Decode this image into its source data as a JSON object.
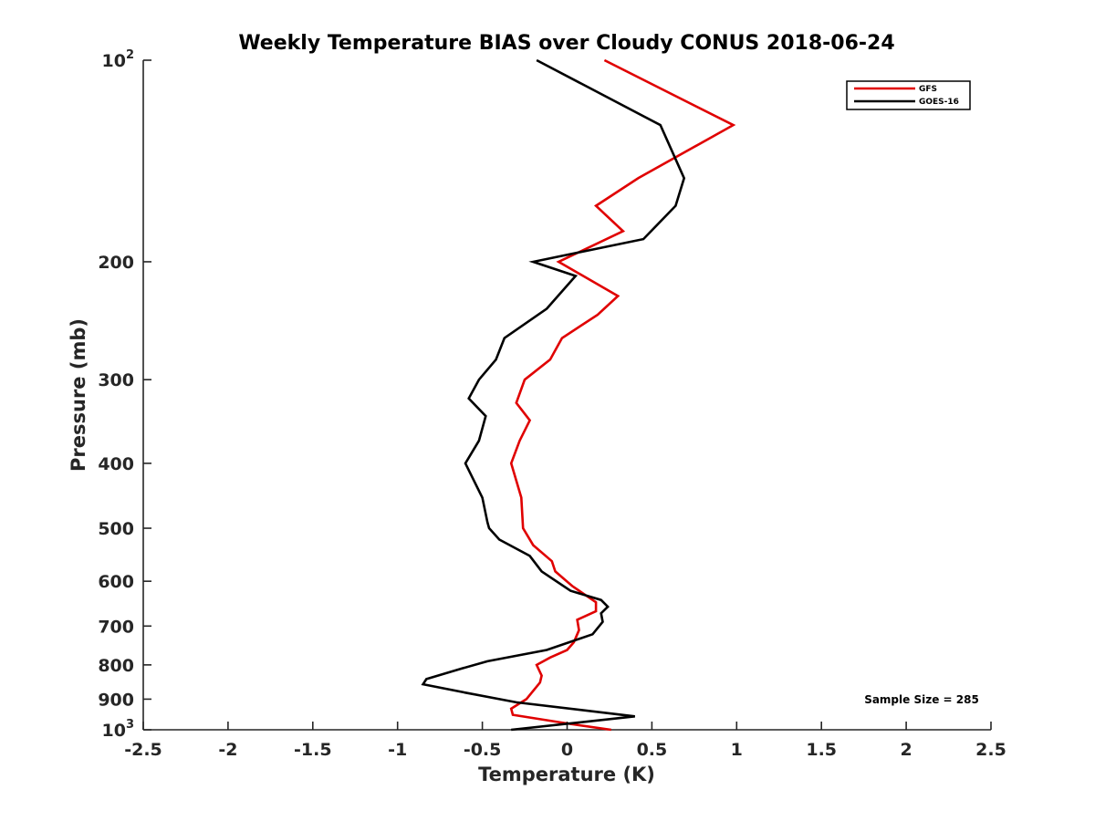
{
  "chart_data": {
    "type": "line",
    "title": "Weekly Temperature BIAS over Cloudy CONUS 2018-06-24",
    "xlabel": "Temperature (K)",
    "ylabel": "Pressure (mb)",
    "xlim": [
      -2.5,
      2.5
    ],
    "ylim": [
      1000,
      100
    ],
    "yscale": "log",
    "y_reversed": true,
    "grid": false,
    "legend_position": "top-right",
    "x_ticks": [
      "-2.5",
      "-2",
      "-1.5",
      "-1",
      "-0.5",
      "0",
      "0.5",
      "1",
      "1.5",
      "2",
      "2.5"
    ],
    "x_tick_values": [
      -2.5,
      -2,
      -1.5,
      -1,
      -0.5,
      0,
      0.5,
      1,
      1.5,
      2,
      2.5
    ],
    "y_ticks": [
      {
        "value": 100,
        "base": "10",
        "exp": "2"
      },
      {
        "value": 200,
        "label": "200"
      },
      {
        "value": 300,
        "label": "300"
      },
      {
        "value": 400,
        "label": "400"
      },
      {
        "value": 500,
        "label": "500"
      },
      {
        "value": 600,
        "label": "600"
      },
      {
        "value": 700,
        "label": "700"
      },
      {
        "value": 800,
        "label": "800"
      },
      {
        "value": 900,
        "label": "900"
      },
      {
        "value": 1000,
        "base": "10",
        "exp": "3"
      }
    ],
    "annotation": "Sample Size = 285",
    "series": [
      {
        "name": "GFS",
        "color": "#e00000",
        "points": [
          [
            0.22,
            100
          ],
          [
            0.98,
            125
          ],
          [
            0.42,
            150
          ],
          [
            0.17,
            165
          ],
          [
            0.33,
            180
          ],
          [
            -0.05,
            200
          ],
          [
            0.3,
            225
          ],
          [
            0.18,
            240
          ],
          [
            -0.03,
            260
          ],
          [
            -0.1,
            280
          ],
          [
            -0.25,
            300
          ],
          [
            -0.3,
            325
          ],
          [
            -0.22,
            345
          ],
          [
            -0.28,
            370
          ],
          [
            -0.33,
            400
          ],
          [
            -0.27,
            450
          ],
          [
            -0.26,
            500
          ],
          [
            -0.2,
            530
          ],
          [
            -0.09,
            560
          ],
          [
            -0.07,
            580
          ],
          [
            0.03,
            610
          ],
          [
            0.17,
            645
          ],
          [
            0.17,
            665
          ],
          [
            0.06,
            685
          ],
          [
            0.07,
            710
          ],
          [
            0.04,
            740
          ],
          [
            0.0,
            760
          ],
          [
            -0.1,
            780
          ],
          [
            -0.18,
            800
          ],
          [
            -0.15,
            830
          ],
          [
            -0.16,
            850
          ],
          [
            -0.24,
            900
          ],
          [
            -0.33,
            930
          ],
          [
            -0.32,
            950
          ],
          [
            0.02,
            980
          ],
          [
            0.26,
            1000
          ]
        ]
      },
      {
        "name": "GOES-16",
        "color": "#000000",
        "points": [
          [
            -0.18,
            100
          ],
          [
            0.55,
            125
          ],
          [
            0.69,
            150
          ],
          [
            0.64,
            165
          ],
          [
            0.45,
            185
          ],
          [
            -0.2,
            200
          ],
          [
            0.05,
            210
          ],
          [
            -0.12,
            235
          ],
          [
            -0.37,
            260
          ],
          [
            -0.42,
            280
          ],
          [
            -0.52,
            300
          ],
          [
            -0.58,
            320
          ],
          [
            -0.48,
            340
          ],
          [
            -0.52,
            370
          ],
          [
            -0.6,
            400
          ],
          [
            -0.5,
            450
          ],
          [
            -0.47,
            490
          ],
          [
            -0.46,
            500
          ],
          [
            -0.4,
            520
          ],
          [
            -0.22,
            550
          ],
          [
            -0.15,
            580
          ],
          [
            0.02,
            620
          ],
          [
            0.2,
            640
          ],
          [
            0.24,
            655
          ],
          [
            0.2,
            670
          ],
          [
            0.21,
            690
          ],
          [
            0.15,
            720
          ],
          [
            -0.12,
            760
          ],
          [
            -0.47,
            790
          ],
          [
            -0.62,
            810
          ],
          [
            -0.83,
            840
          ],
          [
            -0.85,
            855
          ],
          [
            -0.6,
            880
          ],
          [
            -0.3,
            910
          ],
          [
            0.4,
            955
          ],
          [
            -0.33,
            1000
          ]
        ]
      }
    ]
  }
}
